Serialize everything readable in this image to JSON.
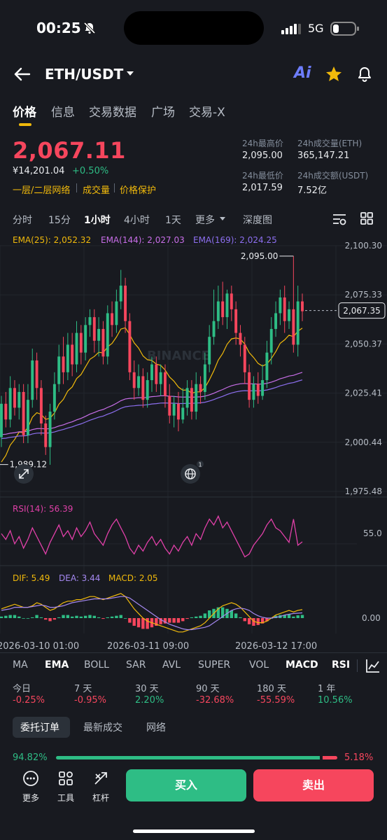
{
  "status_bar": {
    "time": "00:25",
    "network": "5G",
    "silent_icon": "bell-slash-icon",
    "signal_icon": "signal-bars-icon",
    "battery_icon": "battery-icon"
  },
  "header": {
    "pair": "ETH/USDT",
    "ai_label": "Ai",
    "icons": [
      "back-arrow-icon",
      "dropdown-caret-icon",
      "star-icon",
      "bell-icon"
    ]
  },
  "tabs": [
    "价格",
    "信息",
    "交易数据",
    "广场",
    "交易-X"
  ],
  "price": {
    "last": "2,067.11",
    "cny": "¥14,201.04",
    "change": "+0.50%",
    "tags": [
      "一层/二层网络",
      "成交量",
      "价格保护"
    ],
    "stats": [
      {
        "label": "24h最高价",
        "value": "2,095.00"
      },
      {
        "label": "24h成交量(ETH)",
        "value": "365,147.21"
      },
      {
        "label": "24h最低价",
        "value": "2,017.59"
      },
      {
        "label": "24h成交额(USDT)",
        "value": "7.52亿"
      }
    ]
  },
  "intervals": [
    "分时",
    "15分",
    "1小时",
    "4小时",
    "1天",
    "更多",
    "深度图"
  ],
  "active_interval": "1小时",
  "chart_data": {
    "type": "candlestick",
    "ema_legend": [
      "EMA(25): 2,052.32",
      "EMA(144): 2,027.03",
      "EMA(169): 2,024.25"
    ],
    "price_axis": [
      "2,100.30",
      "2,075.33",
      "2,050.37",
      "2,025.41",
      "2,000.44",
      "1,975.48"
    ],
    "ylim": [
      1975.48,
      2100.3
    ],
    "current_price_label": "2,067.35",
    "current_price": 2067.35,
    "high_label": "2,095.00",
    "high": 2095.0,
    "low_label": "1,989.12",
    "low": 1989.12,
    "time_axis": [
      "2026-03-10 01:00",
      "2026-03-11 09:00",
      "2026-03-12 17:00"
    ],
    "watermark": "BINANCE",
    "candles": [
      {
        "o": 2003,
        "c": 2020,
        "h": 2024,
        "l": 1998
      },
      {
        "o": 2020,
        "c": 2012,
        "h": 2026,
        "l": 2008
      },
      {
        "o": 2012,
        "c": 2028,
        "h": 2034,
        "l": 2008
      },
      {
        "o": 2028,
        "c": 2018,
        "h": 2032,
        "l": 2014
      },
      {
        "o": 2018,
        "c": 2026,
        "h": 2030,
        "l": 2012
      },
      {
        "o": 2026,
        "c": 2004,
        "h": 2030,
        "l": 2000
      },
      {
        "o": 2004,
        "c": 2022,
        "h": 2030,
        "l": 2000
      },
      {
        "o": 2022,
        "c": 2042,
        "h": 2048,
        "l": 2018
      },
      {
        "o": 2042,
        "c": 2028,
        "h": 2046,
        "l": 2022
      },
      {
        "o": 2028,
        "c": 2010,
        "h": 2032,
        "l": 2004
      },
      {
        "o": 2010,
        "c": 1998,
        "h": 2014,
        "l": 1994
      },
      {
        "o": 1998,
        "c": 2016,
        "h": 2020,
        "l": 1989
      },
      {
        "o": 2016,
        "c": 2030,
        "h": 2036,
        "l": 2012
      },
      {
        "o": 2030,
        "c": 2044,
        "h": 2050,
        "l": 2026
      },
      {
        "o": 2044,
        "c": 2036,
        "h": 2054,
        "l": 2030
      },
      {
        "o": 2036,
        "c": 2050,
        "h": 2056,
        "l": 2032
      },
      {
        "o": 2050,
        "c": 2040,
        "h": 2056,
        "l": 2034
      },
      {
        "o": 2040,
        "c": 2056,
        "h": 2062,
        "l": 2036
      },
      {
        "o": 2056,
        "c": 2046,
        "h": 2060,
        "l": 2040
      },
      {
        "o": 2046,
        "c": 2060,
        "h": 2064,
        "l": 2042
      },
      {
        "o": 2060,
        "c": 2064,
        "h": 2068,
        "l": 2054
      },
      {
        "o": 2064,
        "c": 2052,
        "h": 2068,
        "l": 2046
      },
      {
        "o": 2052,
        "c": 2058,
        "h": 2064,
        "l": 2044
      },
      {
        "o": 2058,
        "c": 2044,
        "h": 2062,
        "l": 2040
      },
      {
        "o": 2044,
        "c": 2066,
        "h": 2070,
        "l": 2040
      },
      {
        "o": 2066,
        "c": 2060,
        "h": 2072,
        "l": 2054
      },
      {
        "o": 2060,
        "c": 2072,
        "h": 2078,
        "l": 2056
      },
      {
        "o": 2072,
        "c": 2080,
        "h": 2088,
        "l": 2068
      },
      {
        "o": 2080,
        "c": 2062,
        "h": 2084,
        "l": 2056
      },
      {
        "o": 2062,
        "c": 2036,
        "h": 2066,
        "l": 2032
      },
      {
        "o": 2036,
        "c": 2028,
        "h": 2042,
        "l": 2022
      },
      {
        "o": 2028,
        "c": 2034,
        "h": 2040,
        "l": 2024
      },
      {
        "o": 2034,
        "c": 2022,
        "h": 2038,
        "l": 2018
      },
      {
        "o": 2022,
        "c": 2032,
        "h": 2036,
        "l": 2018
      },
      {
        "o": 2032,
        "c": 2040,
        "h": 2044,
        "l": 2026
      },
      {
        "o": 2040,
        "c": 2030,
        "h": 2044,
        "l": 2026
      },
      {
        "o": 2030,
        "c": 2036,
        "h": 2040,
        "l": 2024
      },
      {
        "o": 2036,
        "c": 2024,
        "h": 2040,
        "l": 2018
      },
      {
        "o": 2024,
        "c": 2014,
        "h": 2030,
        "l": 2010
      },
      {
        "o": 2014,
        "c": 2020,
        "h": 2024,
        "l": 2008
      },
      {
        "o": 2020,
        "c": 2012,
        "h": 2026,
        "l": 2006
      },
      {
        "o": 2012,
        "c": 2018,
        "h": 2028,
        "l": 2010
      },
      {
        "o": 2018,
        "c": 2028,
        "h": 2032,
        "l": 2014
      },
      {
        "o": 2028,
        "c": 2016,
        "h": 2032,
        "l": 2012
      },
      {
        "o": 2016,
        "c": 2030,
        "h": 2036,
        "l": 2012
      },
      {
        "o": 2030,
        "c": 2026,
        "h": 2034,
        "l": 2020
      },
      {
        "o": 2026,
        "c": 2040,
        "h": 2046,
        "l": 2022
      },
      {
        "o": 2040,
        "c": 2054,
        "h": 2060,
        "l": 2036
      },
      {
        "o": 2054,
        "c": 2062,
        "h": 2078,
        "l": 2050
      },
      {
        "o": 2062,
        "c": 2072,
        "h": 2080,
        "l": 2058
      },
      {
        "o": 2072,
        "c": 2064,
        "h": 2082,
        "l": 2060
      },
      {
        "o": 2064,
        "c": 2076,
        "h": 2078,
        "l": 2058
      },
      {
        "o": 2076,
        "c": 2068,
        "h": 2080,
        "l": 2062
      },
      {
        "o": 2068,
        "c": 2056,
        "h": 2072,
        "l": 2050
      },
      {
        "o": 2056,
        "c": 2050,
        "h": 2060,
        "l": 2044
      },
      {
        "o": 2050,
        "c": 2036,
        "h": 2054,
        "l": 2030
      },
      {
        "o": 2036,
        "c": 2022,
        "h": 2040,
        "l": 2018
      },
      {
        "o": 2022,
        "c": 2030,
        "h": 2034,
        "l": 2018
      },
      {
        "o": 2030,
        "c": 2024,
        "h": 2036,
        "l": 2020
      },
      {
        "o": 2024,
        "c": 2032,
        "h": 2040,
        "l": 2022
      },
      {
        "o": 2032,
        "c": 2046,
        "h": 2052,
        "l": 2028
      },
      {
        "o": 2046,
        "c": 2058,
        "h": 2064,
        "l": 2040
      },
      {
        "o": 2058,
        "c": 2066,
        "h": 2072,
        "l": 2054
      },
      {
        "o": 2066,
        "c": 2074,
        "h": 2078,
        "l": 2060
      },
      {
        "o": 2074,
        "c": 2062,
        "h": 2080,
        "l": 2056
      },
      {
        "o": 2062,
        "c": 2068,
        "h": 2072,
        "l": 2058
      },
      {
        "o": 2068,
        "c": 2050,
        "h": 2095,
        "l": 2046
      },
      {
        "o": 2050,
        "c": 2072,
        "h": 2080,
        "l": 2044
      },
      {
        "o": 2072,
        "c": 2067,
        "h": 2076,
        "l": 2062
      }
    ],
    "rsi": {
      "legend": "RSI(14): 56.39",
      "axis_label": "55.0",
      "values": [
        62,
        58,
        64,
        55,
        60,
        52,
        58,
        66,
        60,
        54,
        48,
        56,
        62,
        68,
        60,
        64,
        58,
        66,
        60,
        64,
        70,
        62,
        58,
        54,
        62,
        68,
        72,
        66,
        60,
        52,
        48,
        54,
        50,
        56,
        60,
        54,
        58,
        52,
        48,
        54,
        50,
        56,
        60,
        54,
        62,
        58,
        66,
        72,
        68,
        74,
        66,
        70,
        64,
        58,
        52,
        46,
        48,
        54,
        58,
        62,
        68,
        72,
        66,
        64,
        60,
        56,
        72,
        54,
        56.4
      ]
    },
    "macd": {
      "legend_dif": "DIF: 5.49",
      "legend_dea": "DEA: 3.44",
      "legend_macd": "MACD: 2.05",
      "axis_label": "0.00",
      "dif": [
        6,
        7,
        8,
        9,
        8,
        7,
        7,
        8,
        10,
        9,
        7,
        5,
        6,
        8,
        10,
        11,
        11,
        12,
        12,
        13,
        14,
        14,
        13,
        12,
        13,
        14,
        15,
        16,
        14,
        10,
        6,
        3,
        0,
        -2,
        -3,
        -4,
        -5,
        -6,
        -7,
        -8,
        -9,
        -9,
        -8,
        -7,
        -6,
        -5,
        -3,
        0,
        3,
        6,
        8,
        9,
        10,
        9,
        7,
        4,
        1,
        -2,
        -3,
        -3,
        -2,
        0,
        2,
        3,
        4,
        5,
        4,
        5,
        5.5
      ],
      "dea": [
        5,
        5.5,
        6,
        7,
        7,
        7,
        7,
        7.5,
        8,
        8.5,
        8,
        7,
        7,
        7.5,
        8,
        9,
        10,
        10.5,
        11,
        11.5,
        12,
        12.5,
        12.5,
        12.5,
        12.5,
        13,
        13.5,
        14,
        14,
        13,
        11,
        9,
        7,
        5,
        3,
        1,
        -1,
        -2.5,
        -4,
        -5,
        -6,
        -7,
        -7.5,
        -7.5,
        -7,
        -6.5,
        -6,
        -5,
        -3,
        -1,
        1,
        3,
        5,
        6,
        6.5,
        6,
        5,
        3,
        1.5,
        0.5,
        0,
        0,
        0.5,
        1,
        2,
        2.5,
        3,
        3.2,
        3.4
      ],
      "hist": [
        1,
        1.5,
        2,
        2,
        1,
        0,
        0,
        0.5,
        2,
        0.5,
        -1,
        -2,
        -1,
        0.5,
        2,
        2,
        1,
        1.5,
        1,
        1.5,
        2,
        1.5,
        0.5,
        -0.5,
        0.5,
        1,
        1.5,
        2,
        0,
        -3,
        -5,
        -6,
        -7,
        -7,
        -6,
        -5,
        -4,
        -3.5,
        -3,
        -3,
        -3,
        -2,
        -0.5,
        0.5,
        1,
        1.5,
        3,
        5,
        6,
        7,
        7,
        6,
        5,
        3,
        0.5,
        -2,
        -4,
        -5,
        -4.5,
        -3.5,
        -2,
        0,
        1.5,
        2,
        2,
        2.5,
        1,
        1.8,
        2.05
      ]
    }
  },
  "indicators": [
    "MA",
    "EMA",
    "BOLL",
    "SAR",
    "AVL",
    "SUPER",
    "VOL",
    "MACD",
    "RSI"
  ],
  "active_indicators": [
    "EMA",
    "MACD",
    "RSI"
  ],
  "performance": [
    {
      "label": "今日",
      "value": "-0.25%"
    },
    {
      "label": "7 天",
      "value": "-0.95%"
    },
    {
      "label": "30 天",
      "value": "2.20%"
    },
    {
      "label": "90 天",
      "value": "-32.68%"
    },
    {
      "label": "180 天",
      "value": "-55.59%"
    },
    {
      "label": "1 年",
      "value": "10.56%"
    }
  ],
  "order_tabs": [
    "委托订单",
    "最新成交",
    "网络"
  ],
  "depth_ratio": {
    "bid": "94.82%",
    "ask": "5.18%",
    "bid_fraction": 0.9482
  },
  "bottom_bar": {
    "more": "更多",
    "tools": "工具",
    "leverage": "杠杆",
    "buy": "买入",
    "sell": "卖出"
  },
  "colors": {
    "background": "#181a20",
    "up": "#2ebd85",
    "down": "#f6465d",
    "accent": "#f0b90b",
    "ema25": "#f0b90b",
    "ema144": "#c86ee8",
    "ema169": "#8d6ff0",
    "rsi": "#e040a8",
    "dif": "#f0b90b",
    "dea": "#a488f0"
  }
}
